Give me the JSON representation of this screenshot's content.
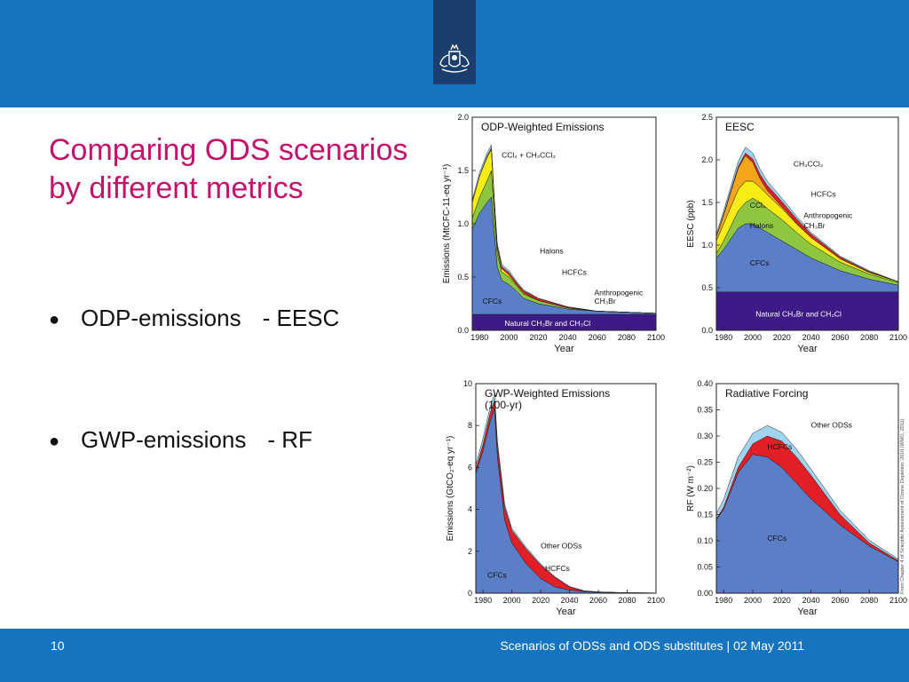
{
  "slide": {
    "title": "Comparing ODS scenarios by different metrics",
    "bullets": [
      {
        "left": "ODP-emissions",
        "right": "- EESC"
      },
      {
        "left": "GWP-emissions",
        "right": "- RF"
      }
    ],
    "page_number": "10",
    "footer": "Scenarios of ODSs and ODS substitutes | 02 May 2011",
    "source_note": "From Chapter 4 of Scientific Assessment of Ozone Depletion: 2010 (WMO, 2011).",
    "colors": {
      "header": "#1474c0",
      "title": "#c4126b",
      "logo_tab": "#1a3f6e"
    }
  },
  "chart_data": [
    {
      "type": "area",
      "title": "ODP-Weighted Emissions",
      "xlabel": "Year",
      "ylabel": "Emissions (MtCFC-11-eq yr⁻¹)",
      "xlim": [
        1975,
        2100
      ],
      "ylim": [
        0,
        2.0
      ],
      "xticks": [
        "1980",
        "2000",
        "2020",
        "2040",
        "2060",
        "2080",
        "2100"
      ],
      "yticks": [
        "0.0",
        "0.5",
        "1.0",
        "1.5",
        "2.0"
      ],
      "x": [
        1975,
        1980,
        1985,
        1988,
        1990,
        1992,
        1995,
        2000,
        2005,
        2010,
        2020,
        2040,
        2060,
        2080,
        2100
      ],
      "series": [
        {
          "name": "Natural CH₃Br and CH₃Cl",
          "color": "#3d1a86",
          "values": [
            0.15,
            0.15,
            0.15,
            0.15,
            0.15,
            0.15,
            0.15,
            0.15,
            0.15,
            0.15,
            0.15,
            0.15,
            0.15,
            0.15,
            0.15
          ]
        },
        {
          "name": "CFCs",
          "color": "#5a7fc6",
          "values": [
            0.8,
            0.95,
            1.05,
            1.1,
            0.75,
            0.45,
            0.32,
            0.28,
            0.22,
            0.15,
            0.1,
            0.05,
            0.03,
            0.02,
            0.01
          ]
        },
        {
          "name": "Halons",
          "color": "#8ec63f",
          "values": [
            0.1,
            0.15,
            0.2,
            0.25,
            0.2,
            0.12,
            0.08,
            0.07,
            0.05,
            0.04,
            0.03,
            0.01,
            0.0,
            0.0,
            0.0
          ]
        },
        {
          "name": "CCl₄ + CH₃CCl₃",
          "color": "#f7ec13",
          "values": [
            0.15,
            0.2,
            0.22,
            0.2,
            0.1,
            0.05,
            0.03,
            0.02,
            0.01,
            0.01,
            0.0,
            0.0,
            0.0,
            0.0,
            0.0
          ]
        },
        {
          "name": "HCFCs",
          "color": "#e21f26",
          "values": [
            0.0,
            0.0,
            0.01,
            0.01,
            0.01,
            0.02,
            0.02,
            0.02,
            0.02,
            0.02,
            0.02,
            0.01,
            0.0,
            0.0,
            0.0
          ]
        },
        {
          "name": "Anthropogenic CH₃Br",
          "color": "#9fd3ef",
          "values": [
            0.02,
            0.03,
            0.03,
            0.03,
            0.03,
            0.03,
            0.02,
            0.02,
            0.01,
            0.01,
            0.0,
            0.0,
            0.0,
            0.0,
            0.0
          ]
        }
      ]
    },
    {
      "type": "area",
      "title": "EESC",
      "xlabel": "Year",
      "ylabel": "EESC (ppb)",
      "xlim": [
        1975,
        2100
      ],
      "ylim": [
        0,
        2.5
      ],
      "xticks": [
        "1980",
        "2000",
        "2020",
        "2040",
        "2060",
        "2080",
        "2100"
      ],
      "yticks": [
        "0.0",
        "0.5",
        "1.0",
        "1.5",
        "2.0",
        "2.5"
      ],
      "x": [
        1975,
        1980,
        1990,
        1995,
        2000,
        2005,
        2010,
        2020,
        2030,
        2040,
        2060,
        2080,
        2100
      ],
      "series": [
        {
          "name": "Natural CH₃Br and CH₃Cl",
          "color": "#3d1a86",
          "values": [
            0.45,
            0.45,
            0.45,
            0.45,
            0.45,
            0.45,
            0.45,
            0.45,
            0.45,
            0.45,
            0.45,
            0.45,
            0.45
          ]
        },
        {
          "name": "CFCs",
          "color": "#5a7fc6",
          "values": [
            0.4,
            0.5,
            0.75,
            0.8,
            0.8,
            0.75,
            0.7,
            0.6,
            0.5,
            0.4,
            0.25,
            0.15,
            0.08
          ]
        },
        {
          "name": "Halons",
          "color": "#8ec63f",
          "values": [
            0.05,
            0.1,
            0.2,
            0.25,
            0.3,
            0.3,
            0.28,
            0.25,
            0.2,
            0.16,
            0.1,
            0.06,
            0.03
          ]
        },
        {
          "name": "CCl₄",
          "color": "#f7ec13",
          "values": [
            0.15,
            0.2,
            0.25,
            0.25,
            0.2,
            0.18,
            0.16,
            0.13,
            0.1,
            0.08,
            0.04,
            0.02,
            0.01
          ]
        },
        {
          "name": "CH₃CCl₃",
          "color": "#f7a61c",
          "values": [
            0.05,
            0.1,
            0.25,
            0.3,
            0.22,
            0.1,
            0.05,
            0.02,
            0.01,
            0.0,
            0.0,
            0.0,
            0.0
          ]
        },
        {
          "name": "HCFCs",
          "color": "#e21f26",
          "values": [
            0.0,
            0.01,
            0.02,
            0.03,
            0.04,
            0.05,
            0.06,
            0.06,
            0.05,
            0.04,
            0.02,
            0.01,
            0.0
          ]
        },
        {
          "name": "Anthropogenic CH₃Br",
          "color": "#9fd3ef",
          "values": [
            0.03,
            0.04,
            0.06,
            0.07,
            0.07,
            0.06,
            0.05,
            0.04,
            0.03,
            0.02,
            0.01,
            0.01,
            0.0
          ]
        }
      ]
    },
    {
      "type": "area",
      "title": "GWP-Weighted Emissions\n(100-yr)",
      "xlabel": "Year",
      "ylabel": "Emissions (GtCO₂-eq yr⁻¹)",
      "xlim": [
        1975,
        2100
      ],
      "ylim": [
        0,
        10
      ],
      "xticks": [
        "1980",
        "2000",
        "2020",
        "2040",
        "2060",
        "2080",
        "2100"
      ],
      "yticks": [
        "0",
        "2",
        "4",
        "6",
        "8",
        "10"
      ],
      "x": [
        1975,
        1980,
        1985,
        1988,
        1990,
        1995,
        2000,
        2010,
        2020,
        2030,
        2040,
        2050,
        2060,
        2080,
        2100
      ],
      "series": [
        {
          "name": "CFCs",
          "color": "#5a7fc6",
          "values": [
            5.7,
            6.8,
            8.2,
            8.8,
            6.5,
            3.5,
            2.4,
            1.4,
            0.7,
            0.3,
            0.15,
            0.08,
            0.05,
            0.02,
            0.01
          ]
        },
        {
          "name": "HCFCs",
          "color": "#e21f26",
          "values": [
            0.2,
            0.3,
            0.4,
            0.4,
            0.5,
            0.6,
            0.6,
            0.7,
            0.65,
            0.45,
            0.15,
            0.03,
            0.01,
            0.0,
            0.0
          ]
        },
        {
          "name": "Other ODSs",
          "color": "#9fd3ef",
          "values": [
            0.2,
            0.3,
            0.3,
            0.3,
            0.25,
            0.15,
            0.1,
            0.08,
            0.05,
            0.03,
            0.02,
            0.01,
            0.0,
            0.0,
            0.0
          ]
        }
      ]
    },
    {
      "type": "area",
      "title": "Radiative Forcing",
      "xlabel": "Year",
      "ylabel": "RF (W m⁻²)",
      "xlim": [
        1975,
        2100
      ],
      "ylim": [
        0,
        0.4
      ],
      "xticks": [
        "1980",
        "2000",
        "2020",
        "2040",
        "2060",
        "2080",
        "2100"
      ],
      "yticks": [
        "0.00",
        "0.05",
        "0.10",
        "0.15",
        "0.20",
        "0.25",
        "0.30",
        "0.35",
        "0.40"
      ],
      "x": [
        1975,
        1980,
        1990,
        2000,
        2010,
        2020,
        2030,
        2040,
        2060,
        2080,
        2100
      ],
      "series": [
        {
          "name": "CFCs",
          "color": "#5a7fc6",
          "values": [
            0.14,
            0.16,
            0.23,
            0.265,
            0.26,
            0.24,
            0.21,
            0.18,
            0.13,
            0.09,
            0.06
          ]
        },
        {
          "name": "HCFCs",
          "color": "#e21f26",
          "values": [
            0.002,
            0.004,
            0.01,
            0.02,
            0.04,
            0.05,
            0.05,
            0.045,
            0.02,
            0.006,
            0.002
          ]
        },
        {
          "name": "Other ODSs",
          "color": "#9fd3ef",
          "values": [
            0.01,
            0.015,
            0.02,
            0.02,
            0.02,
            0.017,
            0.015,
            0.012,
            0.008,
            0.005,
            0.003
          ]
        }
      ]
    }
  ],
  "panel_labels": [
    [
      {
        "text": "CCl₄ + CH₃CCl₃",
        "x": 1995,
        "y": 1.62
      },
      {
        "text": "Halons",
        "x": 2021,
        "y": 0.72
      },
      {
        "text": "HCFCs",
        "x": 2036,
        "y": 0.52
      },
      {
        "text": "Anthropogenic",
        "x": 2058,
        "y": 0.33
      },
      {
        "text": "CH₃Br",
        "x": 2058,
        "y": 0.25
      },
      {
        "text": "CFCs",
        "x": 1982,
        "y": 0.25
      },
      {
        "text": "Natural CH₃Br and CH₃Cl",
        "x": 1997,
        "y": 0.04,
        "white": true
      }
    ],
    [
      {
        "text": "CH₃CCl₃",
        "x": 2028,
        "y": 1.92
      },
      {
        "text": "HCFCs",
        "x": 2040,
        "y": 1.57
      },
      {
        "text": "CCl₄",
        "x": 1998,
        "y": 1.44
      },
      {
        "text": "Anthropogenic",
        "x": 2035,
        "y": 1.32
      },
      {
        "text": "CH₃Br",
        "x": 2035,
        "y": 1.2
      },
      {
        "text": "Halons",
        "x": 1998,
        "y": 1.2
      },
      {
        "text": "CFCs",
        "x": 1998,
        "y": 0.76
      },
      {
        "text": "Natural CH₃Br and CH₃Cl",
        "x": 2002,
        "y": 0.16,
        "white": true
      }
    ],
    [
      {
        "text": "Other ODSs",
        "x": 2020,
        "y": 2.15
      },
      {
        "text": "HCFCs",
        "x": 2023,
        "y": 1.05
      },
      {
        "text": "CFCs",
        "x": 1983,
        "y": 0.75
      }
    ],
    [
      {
        "text": "Other ODSs",
        "x": 2040,
        "y": 0.316
      },
      {
        "text": "HCFCs",
        "x": 2010,
        "y": 0.275
      },
      {
        "text": "CFCs",
        "x": 2010,
        "y": 0.1
      }
    ]
  ]
}
